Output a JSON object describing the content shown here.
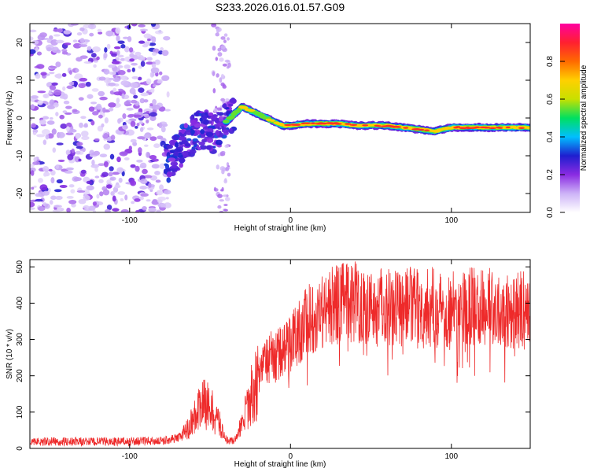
{
  "title": "S233.2026.016.01.57.G09",
  "chart_data": [
    {
      "type": "heatmap",
      "xlabel": "Height of straight line (km)",
      "ylabel": "Frequency (Hz)",
      "xlim": [
        -162,
        149
      ],
      "ylim": [
        -25,
        25
      ],
      "xticks": [
        -100,
        0,
        100
      ],
      "yticks": [
        -20,
        -10,
        0,
        10,
        20
      ],
      "colorbar": {
        "label": "Normalized spectral amplitude",
        "range": [
          0,
          1
        ],
        "ticks": [
          "0.0",
          "0.2",
          "0.4",
          "0.6",
          "0.8"
        ],
        "colors": [
          "#ffffff",
          "#cdb3f7",
          "#8a2be2",
          "#1e1ecf",
          "#00bfff",
          "#00e060",
          "#c8e000",
          "#ffd000",
          "#ff6a00",
          "#ff2030",
          "#ff00a0"
        ]
      },
      "trace": {
        "x": [
          -78,
          -70,
          -62,
          -55,
          -48,
          -40,
          -35,
          -30,
          -25,
          -20,
          -15,
          -10,
          -5,
          0,
          10,
          20,
          30,
          40,
          60,
          80,
          90,
          100,
          120,
          149
        ],
        "freq": [
          -13,
          -9,
          -5,
          -3,
          -4,
          -1,
          1,
          3,
          2,
          1,
          0,
          -1,
          -2,
          -2,
          -1.5,
          -1.5,
          -1.5,
          -2,
          -2,
          -3,
          -3.5,
          -2.5,
          -2.5,
          -2.5
        ],
        "amplitude": [
          0.25,
          0.3,
          0.35,
          0.4,
          0.5,
          0.55,
          0.6,
          0.7,
          0.65,
          0.6,
          0.6,
          0.65,
          0.7,
          0.8,
          0.9,
          0.9,
          0.85,
          0.8,
          0.85,
          0.8,
          0.7,
          0.8,
          0.85,
          0.75
        ]
      },
      "noise_region_x": [
        -162,
        -80
      ]
    },
    {
      "type": "line",
      "xlabel": "Height of straight line (km)",
      "ylabel": "SNR (10 * v/v)",
      "xlim": [
        -162,
        149
      ],
      "ylim": [
        0,
        520
      ],
      "xticks": [
        -100,
        0,
        100
      ],
      "yticks": [
        0,
        100,
        200,
        300,
        400,
        500
      ],
      "color": "#ee2a2a",
      "series": [
        {
          "name": "SNR",
          "x": [
            -162,
            -140,
            -120,
            -100,
            -80,
            -70,
            -65,
            -60,
            -55,
            -50,
            -45,
            -40,
            -35,
            -30,
            -25,
            -20,
            -15,
            -10,
            -5,
            0,
            5,
            10,
            15,
            20,
            25,
            30,
            40,
            50,
            60,
            70,
            80,
            90,
            100,
            110,
            120,
            130,
            140,
            149
          ],
          "y": [
            20,
            20,
            20,
            20,
            22,
            30,
            50,
            90,
            130,
            120,
            80,
            25,
            20,
            70,
            150,
            200,
            250,
            265,
            270,
            300,
            330,
            360,
            380,
            390,
            400,
            410,
            420,
            400,
            410,
            405,
            395,
            400,
            390,
            400,
            395,
            405,
            390,
            390
          ]
        }
      ]
    }
  ]
}
